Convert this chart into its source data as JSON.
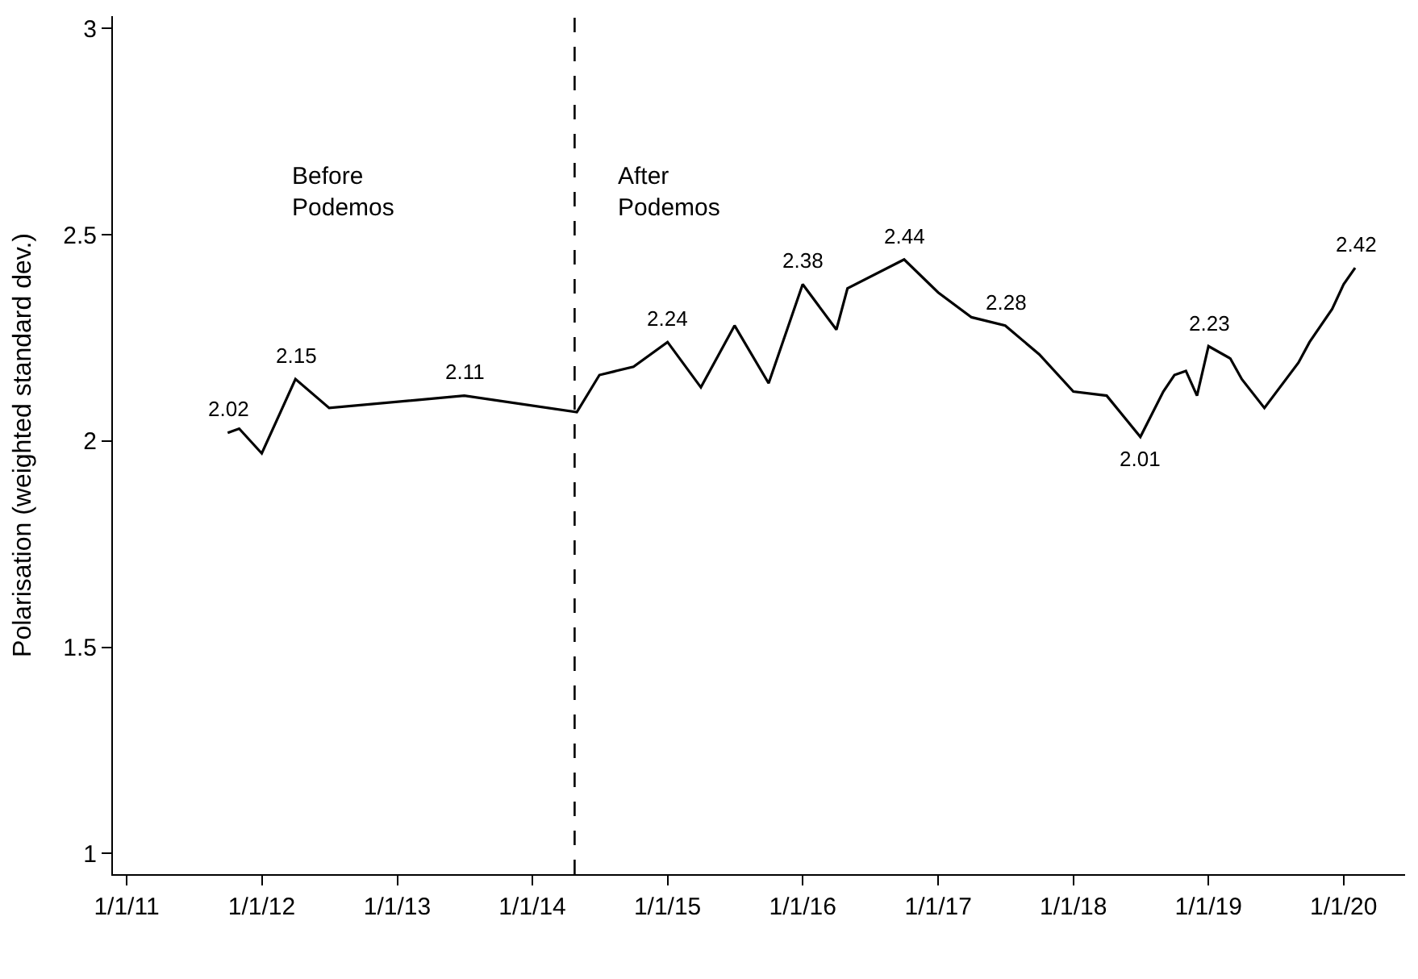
{
  "chart_data": {
    "type": "line",
    "ylabel": "Polarisation (weighted standard dev.)",
    "x": [
      "2011-10-01",
      "2011-11-01",
      "2012-01-01",
      "2012-04-01",
      "2012-07-01",
      "2013-07-01",
      "2014-05-01",
      "2014-07-01",
      "2014-10-01",
      "2015-01-01",
      "2015-04-01",
      "2015-07-01",
      "2015-10-01",
      "2016-01-01",
      "2016-04-01",
      "2016-05-01",
      "2016-10-01",
      "2017-01-01",
      "2017-04-01",
      "2017-07-01",
      "2017-10-01",
      "2018-01-01",
      "2018-04-01",
      "2018-07-01",
      "2018-09-01",
      "2018-10-01",
      "2018-11-01",
      "2018-12-01",
      "2019-01-01",
      "2019-03-01",
      "2019-04-01",
      "2019-06-01",
      "2019-09-01",
      "2019-10-01",
      "2019-12-01",
      "2020-01-01",
      "2020-02-01"
    ],
    "series": [
      {
        "color": "#000000",
        "values": [
          2.02,
          2.03,
          1.97,
          2.15,
          2.08,
          2.11,
          2.07,
          2.16,
          2.18,
          2.24,
          2.13,
          2.28,
          2.14,
          2.38,
          2.27,
          2.37,
          2.44,
          2.36,
          2.3,
          2.28,
          2.21,
          2.12,
          2.11,
          2.01,
          2.12,
          2.16,
          2.17,
          2.11,
          2.23,
          2.2,
          2.15,
          2.08,
          2.19,
          2.24,
          2.32,
          2.38,
          2.42
        ]
      }
    ],
    "xlim": [
      "2010-11-25",
      "2020-06-15"
    ],
    "xticks": [
      {
        "value": "2011-01-01",
        "label": "1/1/11"
      },
      {
        "value": "2012-01-01",
        "label": "1/1/12"
      },
      {
        "value": "2013-01-01",
        "label": "1/1/13"
      },
      {
        "value": "2014-01-01",
        "label": "1/1/14"
      },
      {
        "value": "2015-01-01",
        "label": "1/1/15"
      },
      {
        "value": "2016-01-01",
        "label": "1/1/16"
      },
      {
        "value": "2017-01-01",
        "label": "1/1/17"
      },
      {
        "value": "2018-01-01",
        "label": "1/1/18"
      },
      {
        "value": "2019-01-01",
        "label": "1/1/19"
      },
      {
        "value": "2020-01-01",
        "label": "1/1/20"
      }
    ],
    "ylim": [
      0.95,
      3.03
    ],
    "yticks": [
      1,
      1.5,
      2,
      2.5,
      3
    ],
    "ref_lines": [
      {
        "axis": "x",
        "value": "2014-04-25",
        "color": "#000000",
        "line_style": "dashed"
      }
    ],
    "annotations": [
      "Before\nPodemos",
      "After\nPodemos",
      {
        "text": "2.02",
        "x": "2011-10-01",
        "y": 2.02
      },
      {
        "text": "2.15",
        "x": "2012-04-01",
        "y": 2.15
      },
      {
        "text": "2.11",
        "x": "2013-07-01",
        "y": 2.11
      },
      {
        "text": "2.24",
        "x": "2015-01-01",
        "y": 2.24
      },
      {
        "text": "2.38",
        "x": "2016-01-01",
        "y": 2.38
      },
      {
        "text": "2.44",
        "x": "2016-10-01",
        "y": 2.44
      },
      {
        "text": "2.28",
        "x": "2017-07-01",
        "y": 2.28
      },
      {
        "text": "2.01",
        "x": "2018-07-01",
        "y": 2.01
      },
      {
        "text": "2.23",
        "x": "2019-01-01",
        "y": 2.23
      },
      {
        "text": "2.42",
        "x": "2020-02-01",
        "y": 2.42
      }
    ],
    "marker": "none",
    "line_style": "solid"
  }
}
